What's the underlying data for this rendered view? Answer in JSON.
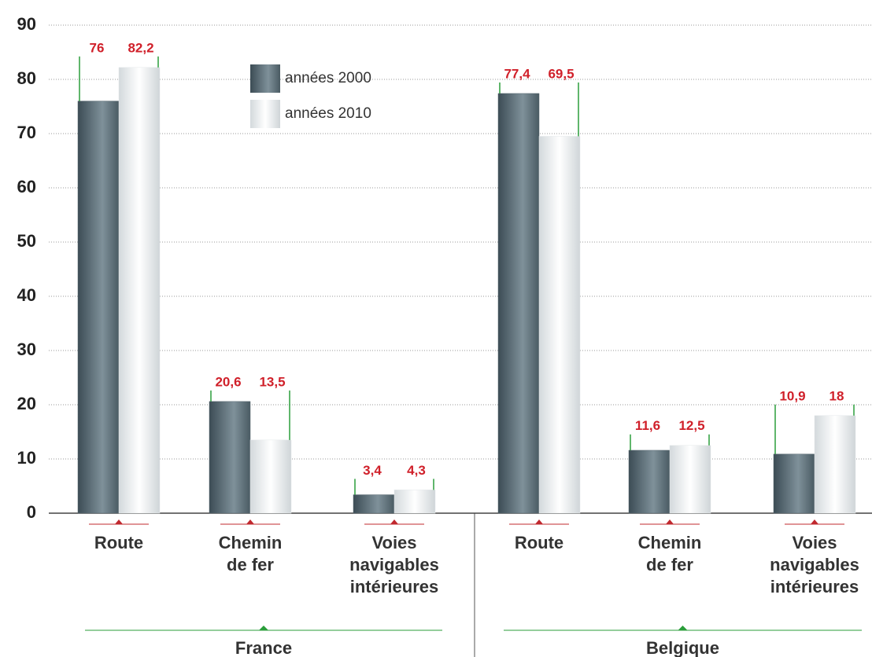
{
  "chart_data": {
    "type": "bar",
    "groups": [
      {
        "name": "France",
        "categories": [
          [
            "Route"
          ],
          [
            "Chemin",
            "de fer"
          ],
          [
            "Voies",
            "navigables",
            "intérieures"
          ]
        ]
      },
      {
        "name": "Belgique",
        "categories": [
          [
            "Route"
          ],
          [
            "Chemin",
            "de fer"
          ],
          [
            "Voies",
            "navigables",
            "intérieures"
          ]
        ]
      }
    ],
    "series": [
      {
        "name": "années 2000",
        "color": "#56676f",
        "values": [
          76,
          20.6,
          3.4,
          77.4,
          11.6,
          10.9
        ],
        "value_labels": [
          "76",
          "20,6",
          "3,4",
          "77,4",
          "11,6",
          "10,9"
        ]
      },
      {
        "name": "années 2010",
        "color": "#e4e8ea",
        "values": [
          82.2,
          13.5,
          4.3,
          69.5,
          12.5,
          18
        ],
        "value_labels": [
          "82,2",
          "13,5",
          "4,3",
          "69,5",
          "12,5",
          "18"
        ]
      }
    ],
    "ylim": [
      0,
      90
    ],
    "yticks": [
      0,
      10,
      20,
      30,
      40,
      50,
      60,
      70,
      80,
      90
    ],
    "grid": true
  }
}
